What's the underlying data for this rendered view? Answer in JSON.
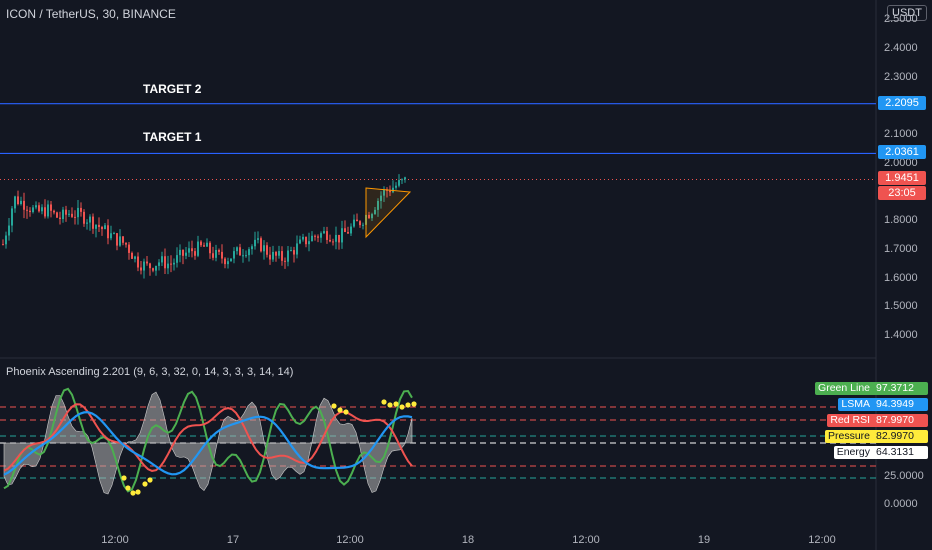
{
  "header": {
    "title": "ICON / TetherUS, 30, BINANCE",
    "currency": "USDT"
  },
  "indicator": {
    "title": "Phoenix Ascending 2.201 (9, 6, 3, 32, 0, 14, 3, 3, 3, 14, 14)",
    "series": [
      {
        "name": "Green Line",
        "value": "97.3712",
        "color": "#4caf50"
      },
      {
        "name": "LSMA",
        "value": "94.3949",
        "color": "#2196f3"
      },
      {
        "name": "Red RSI",
        "value": "87.9970",
        "color": "#ef5350"
      },
      {
        "name": "Pressure",
        "value": "82.9970",
        "color": "#ffeb3b"
      },
      {
        "name": "Energy",
        "value": "64.3131",
        "color": "#ffffff"
      }
    ],
    "y_ticks": [
      "25.0000",
      "0.0000"
    ]
  },
  "annotations": {
    "target1": "TARGET 1",
    "target2": "TARGET 2"
  },
  "price_badges": {
    "target2": "2.2095",
    "target1": "2.0361",
    "last": "1.9451",
    "countdown": "23:05"
  },
  "colors": {
    "background": "#131722",
    "up": "#26a69a",
    "down": "#ef5350",
    "target_line": "#2962ff"
  },
  "chart_data": {
    "type": "candlestick",
    "symbol": "ICON / TetherUS",
    "interval": "30",
    "exchange": "BINANCE",
    "y_ticks": [
      "2.5000",
      "2.4000",
      "2.3000",
      "2.1000",
      "2.0000",
      "1.8000",
      "1.7000",
      "1.6000",
      "1.5000",
      "1.4000"
    ],
    "x_ticks": [
      "12:00",
      "17",
      "12:00",
      "18",
      "12:00",
      "19",
      "12:00"
    ],
    "ylim": [
      1.33,
      2.55
    ],
    "horizontal_lines": [
      2.2095,
      2.0361
    ],
    "last_price": 1.9451,
    "close_path": [
      1.72,
      1.88,
      1.86,
      1.83,
      1.84,
      1.81,
      1.83,
      1.82,
      1.8,
      1.77,
      1.74,
      1.72,
      1.66,
      1.64,
      1.66,
      1.65,
      1.68,
      1.7,
      1.71,
      1.68,
      1.67,
      1.69,
      1.71,
      1.72,
      1.68,
      1.67,
      1.7,
      1.73,
      1.75,
      1.76,
      1.74,
      1.77,
      1.8,
      1.84,
      1.9,
      1.92,
      1.94
    ]
  }
}
